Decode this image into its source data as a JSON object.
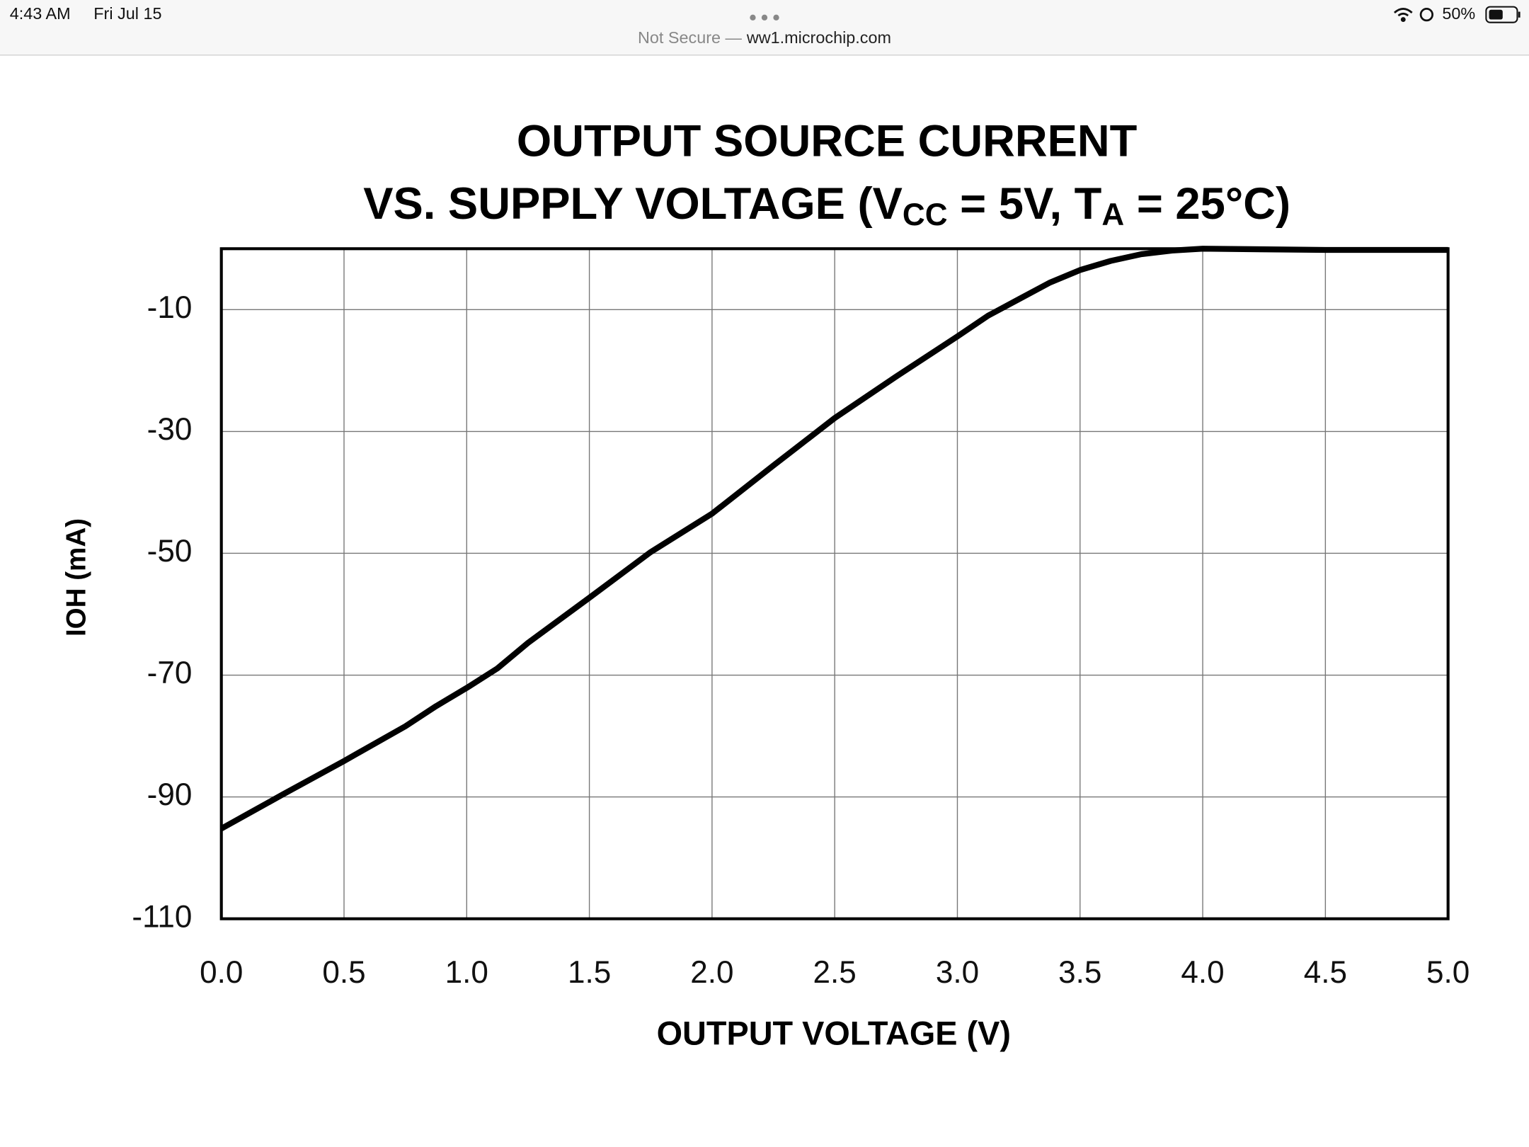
{
  "status_bar": {
    "time": "4:43 AM",
    "date": "Fri Jul 15",
    "battery": "50%"
  },
  "address_bar": {
    "security": "Not Secure —",
    "host": "ww1.microchip.com"
  },
  "chart_data": {
    "type": "line",
    "title": "OUTPUT SOURCE CURRENT",
    "subtitle": [
      "VS. SUPPLY VOLTAGE (V",
      "CC",
      " = 5V, T",
      "A",
      " = 25°C)"
    ],
    "xlabel": "OUTPUT VOLTAGE (V)",
    "ylabel": "IOH (mA)",
    "x": [
      0,
      0.25,
      0.5,
      0.75,
      0.875,
      1.0,
      1.125,
      1.25,
      1.5,
      1.75,
      2.0,
      2.25,
      2.5,
      2.75,
      3.0,
      3.125,
      3.25,
      3.375,
      3.5,
      3.625,
      3.75,
      3.875,
      4.0,
      4.5,
      5.0
    ],
    "values": [
      -95.2,
      -89.6,
      -84.1,
      -78.4,
      -75.1,
      -72.1,
      -68.9,
      -64.7,
      -57.3,
      -49.8,
      -43.5,
      -35.6,
      -27.8,
      -21.0,
      -14.4,
      -11.0,
      -8.3,
      -5.6,
      -3.5,
      -2.0,
      -0.9,
      -0.3,
      0,
      -0.2,
      -0.2
    ],
    "color": "#000000",
    "xlim": [
      0,
      5
    ],
    "ylim": [
      -110,
      0
    ],
    "xticks": [
      {
        "value": 0,
        "label": "0.0"
      },
      0.5,
      {
        "value": 1,
        "label": "1.0"
      },
      1.5,
      {
        "value": 2,
        "label": "2.0"
      },
      2.5,
      {
        "value": 3,
        "label": "3.0"
      },
      3.5,
      {
        "value": 4,
        "label": "4.0"
      },
      4.5,
      {
        "value": 5,
        "label": "5.0"
      }
    ],
    "yticks": [
      -110,
      -90,
      -70,
      -50,
      -30,
      -10
    ],
    "grid": true
  }
}
